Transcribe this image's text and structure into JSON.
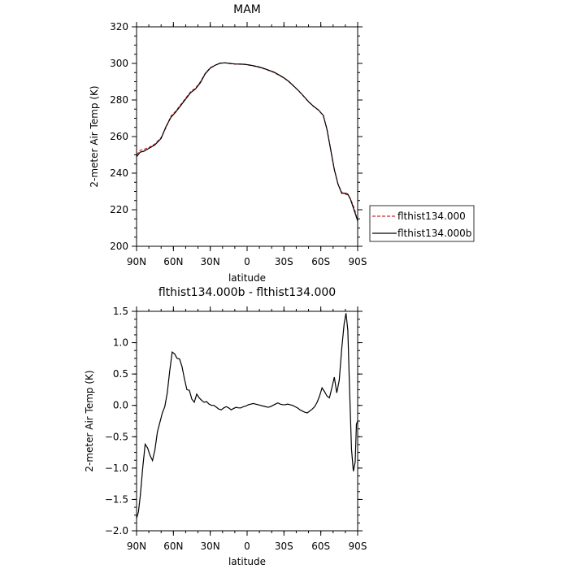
{
  "chart_data": [
    {
      "type": "line",
      "title": "MAM",
      "xlabel": "latitude",
      "ylabel": "2-meter Air Temp (K)",
      "xlim": [
        90,
        -90
      ],
      "ylim": [
        200,
        320
      ],
      "x_ticks": [
        90,
        60,
        30,
        0,
        -30,
        -60,
        -90
      ],
      "x_tick_labels": [
        "90N",
        "60N",
        "30N",
        "0",
        "30S",
        "60S",
        "90S"
      ],
      "y_ticks": [
        200,
        220,
        240,
        260,
        280,
        300,
        320
      ],
      "y_tick_labels": [
        "200",
        "220",
        "240",
        "260",
        "280",
        "300",
        "320"
      ],
      "legend": "outside-right",
      "grid": false,
      "series": [
        {
          "name": "flthist134.000",
          "color": "#d62728",
          "dash": "dashed",
          "x": [
            90,
            87,
            84,
            80,
            75,
            70,
            66,
            62,
            58,
            54,
            50,
            46,
            42,
            38,
            34,
            30,
            26,
            22,
            18,
            14,
            10,
            6,
            2,
            -2,
            -6,
            -10,
            -14,
            -18,
            -22,
            -26,
            -30,
            -34,
            -38,
            -42,
            -46,
            -50,
            -54,
            -58,
            -62,
            -65,
            -68,
            -71,
            -74,
            -77,
            -80,
            -82,
            -84,
            -86,
            -88,
            -90
          ],
          "y": [
            250.0,
            252.5,
            253.0,
            254.0,
            256.0,
            259.5,
            265.0,
            271.2,
            274.0,
            277.5,
            281.0,
            284.5,
            286.5,
            290.0,
            294.7,
            297.6,
            299.0,
            300.1,
            300.3,
            299.9,
            299.6,
            299.6,
            299.5,
            299.0,
            298.5,
            297.8,
            297.0,
            296.0,
            295.0,
            293.5,
            292.0,
            290.0,
            287.5,
            285.0,
            282.0,
            279.0,
            276.5,
            274.5,
            271.5,
            264.0,
            253.0,
            242.0,
            234.0,
            229.5,
            228.5,
            228.0,
            226.0,
            223.0,
            219.0,
            213.5
          ]
        },
        {
          "name": "flthist134.000b",
          "color": "#000000",
          "dash": "solid",
          "x": [
            90,
            87,
            84,
            80,
            75,
            70,
            66,
            62,
            58,
            54,
            50,
            46,
            42,
            38,
            34,
            30,
            26,
            22,
            18,
            14,
            10,
            6,
            2,
            -2,
            -6,
            -10,
            -14,
            -18,
            -22,
            -26,
            -30,
            -34,
            -38,
            -42,
            -46,
            -50,
            -54,
            -58,
            -62,
            -65,
            -68,
            -71,
            -74,
            -77,
            -80,
            -82,
            -84,
            -86,
            -88,
            -90
          ],
          "y": [
            249.0,
            251.5,
            252.0,
            253.5,
            255.5,
            259.0,
            265.5,
            270.5,
            273.5,
            277.0,
            280.5,
            284.0,
            286.0,
            289.5,
            294.4,
            297.4,
            299.0,
            300.1,
            300.3,
            300.0,
            299.7,
            299.6,
            299.5,
            299.1,
            298.6,
            298.0,
            297.2,
            296.2,
            295.2,
            293.7,
            292.1,
            290.1,
            287.6,
            285.0,
            282.1,
            279.1,
            276.6,
            274.6,
            271.6,
            264.0,
            253.0,
            242.0,
            234.0,
            229.0,
            229.0,
            228.5,
            226.0,
            222.0,
            218.0,
            214.0
          ]
        }
      ]
    },
    {
      "type": "line",
      "title": "flthist134.000b - flthist134.000",
      "xlabel": "latitude",
      "ylabel": "2-meter Air Temp (K)",
      "xlim": [
        90,
        -90
      ],
      "ylim": [
        -2.0,
        1.5
      ],
      "x_ticks": [
        90,
        60,
        30,
        0,
        -30,
        -60,
        -90
      ],
      "x_tick_labels": [
        "90N",
        "60N",
        "30N",
        "0",
        "30S",
        "60S",
        "90S"
      ],
      "y_ticks": [
        -2.0,
        -1.5,
        -1.0,
        -0.5,
        0.0,
        0.5,
        1.0,
        1.5
      ],
      "y_tick_labels": [
        "−2.0",
        "−1.5",
        "−1.0",
        "−0.5",
        "0.0",
        "0.5",
        "1.0",
        "1.5"
      ],
      "grid": false,
      "series": [
        {
          "color": "#000000",
          "dash": "solid",
          "x": [
            90,
            88.5,
            87,
            85,
            83,
            81,
            79,
            77,
            75,
            73,
            71,
            69,
            67,
            65,
            63,
            61,
            59,
            57,
            55,
            53,
            51,
            49,
            47,
            45,
            43,
            41,
            39,
            37,
            35,
            33,
            31,
            29,
            27,
            25,
            23,
            21,
            19,
            17,
            15,
            13,
            11,
            9,
            7,
            5,
            3,
            1,
            -1,
            -3,
            -5,
            -7,
            -9,
            -11,
            -13,
            -15,
            -17,
            -19,
            -21,
            -23,
            -25,
            -27,
            -29,
            -31,
            -33,
            -35,
            -37,
            -39,
            -41,
            -43,
            -45,
            -47,
            -49,
            -51,
            -53,
            -55,
            -57,
            -59,
            -61,
            -63,
            -65,
            -67,
            -69,
            -71,
            -73,
            -75,
            -77,
            -79,
            -80.5,
            -82,
            -83.5,
            -85,
            -86.5,
            -88,
            -89,
            -90
          ],
          "y": [
            -1.8,
            -1.7,
            -1.45,
            -1.0,
            -0.62,
            -0.68,
            -0.8,
            -0.88,
            -0.7,
            -0.42,
            -0.27,
            -0.12,
            -0.02,
            0.2,
            0.55,
            0.85,
            0.82,
            0.75,
            0.74,
            0.62,
            0.42,
            0.25,
            0.24,
            0.1,
            0.05,
            0.18,
            0.12,
            0.08,
            0.05,
            0.06,
            0.02,
            0.0,
            0.0,
            -0.03,
            -0.06,
            -0.07,
            -0.04,
            -0.02,
            -0.04,
            -0.07,
            -0.05,
            -0.03,
            -0.04,
            -0.04,
            -0.02,
            -0.01,
            0.01,
            0.02,
            0.03,
            0.02,
            0.01,
            0.0,
            -0.01,
            -0.02,
            -0.03,
            -0.02,
            0.0,
            0.02,
            0.04,
            0.02,
            0.01,
            0.01,
            0.02,
            0.01,
            0.0,
            -0.02,
            -0.04,
            -0.07,
            -0.09,
            -0.11,
            -0.12,
            -0.09,
            -0.06,
            -0.02,
            0.05,
            0.15,
            0.28,
            0.22,
            0.15,
            0.12,
            0.28,
            0.45,
            0.2,
            0.4,
            0.9,
            1.3,
            1.47,
            1.2,
            0.2,
            -0.7,
            -1.05,
            -0.9,
            -0.3,
            -0.25
          ]
        }
      ]
    }
  ]
}
